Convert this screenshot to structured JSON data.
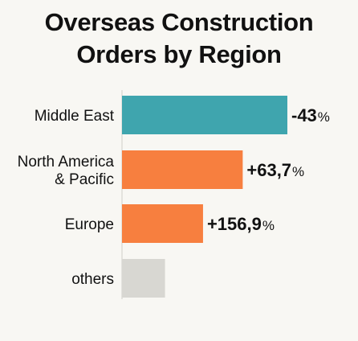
{
  "chart_data": {
    "type": "bar",
    "orientation": "horizontal",
    "title": [
      "Overseas Construction",
      "Orders by Region"
    ],
    "categories": [
      [
        "Middle East"
      ],
      [
        "North America",
        "& Pacific"
      ],
      [
        "Europe"
      ],
      [
        "others"
      ]
    ],
    "bar_magnitude": [
      1.0,
      0.73,
      0.49,
      0.26
    ],
    "data_labels": [
      "-43",
      "+63,7",
      "+156,9",
      ""
    ],
    "unit": "%",
    "colors": [
      "#3fa5ae",
      "#f77f3f",
      "#f77f3f",
      "#d8d7d2"
    ],
    "grid": false,
    "legend": "none"
  }
}
